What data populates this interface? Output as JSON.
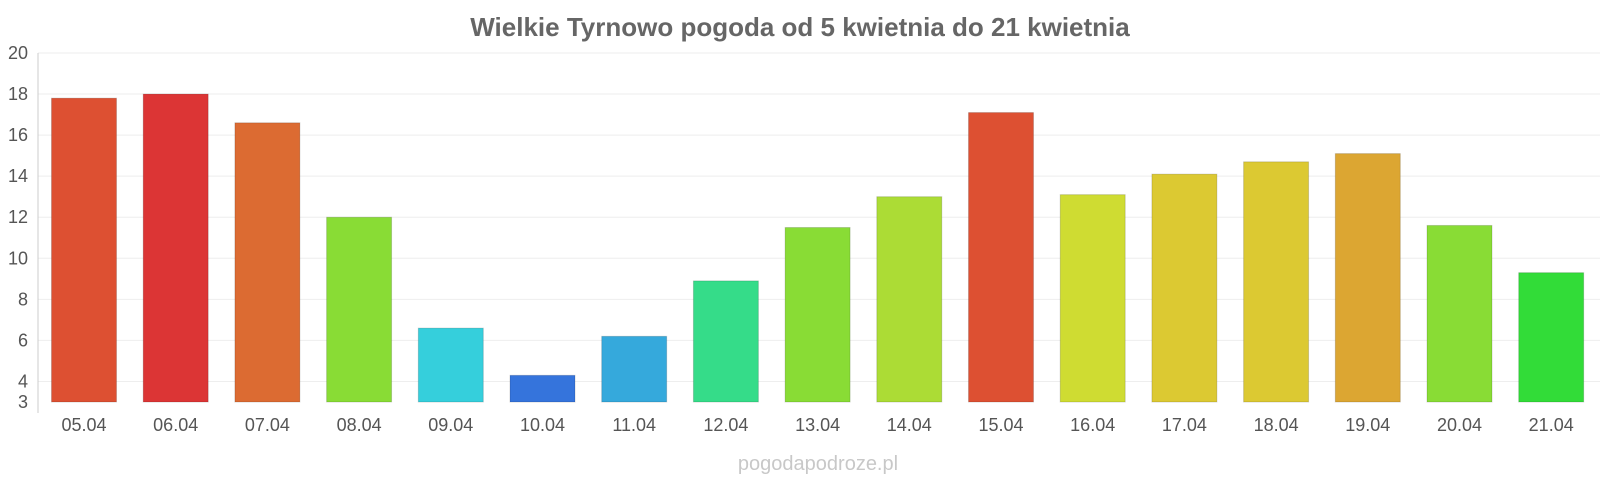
{
  "chart_data": {
    "type": "bar",
    "title": "Wielkie Tyrnowo pogoda od 5 kwietnia do 21 kwietnia",
    "xlabel": "",
    "ylabel": "",
    "categories": [
      "05.04",
      "06.04",
      "07.04",
      "08.04",
      "09.04",
      "10.04",
      "11.04",
      "12.04",
      "13.04",
      "14.04",
      "15.04",
      "16.04",
      "17.04",
      "18.04",
      "19.04",
      "20.04",
      "21.04"
    ],
    "values": [
      17.8,
      18.0,
      16.6,
      12.0,
      6.6,
      4.3,
      6.2,
      8.9,
      11.5,
      13.0,
      17.1,
      13.1,
      14.1,
      14.7,
      15.1,
      11.6,
      9.3
    ],
    "colors": [
      "#dd5032",
      "#dc3535",
      "#dc6b32",
      "#89dc35",
      "#35cfdc",
      "#3574dc",
      "#35a9dc",
      "#35dc89",
      "#89dc35",
      "#acdc35",
      "#dd5032",
      "#cfdc32",
      "#dcc932",
      "#dcc932",
      "#dca632",
      "#89dc35",
      "#32dc38"
    ],
    "ylim": [
      3,
      20
    ],
    "yticks": [
      3,
      4,
      6,
      8,
      10,
      12,
      14,
      16,
      18,
      20
    ],
    "grid": true,
    "legend": "none"
  },
  "watermark": "pogodapodroze.pl"
}
